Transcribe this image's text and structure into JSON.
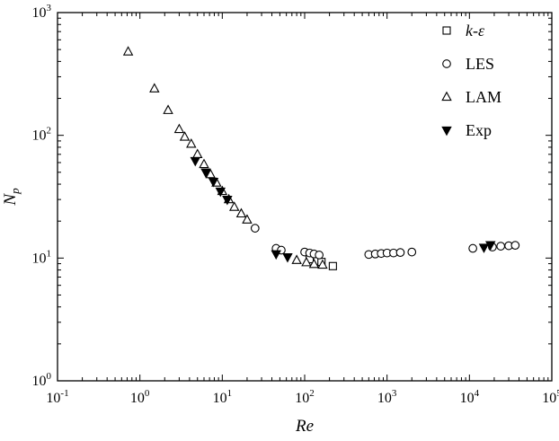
{
  "figure": {
    "background": "#ffffff",
    "frame_color": "#000000",
    "marker_fill_open": "#ffffff",
    "marker_fill_solid": "#000000"
  },
  "chart_data": {
    "type": "scatter",
    "title": "",
    "xlabel": "Re",
    "ylabel_main": "N",
    "ylabel_subscript": "p",
    "x_scale": "log",
    "y_scale": "log",
    "xlim": [
      0.1,
      100000
    ],
    "ylim": [
      1,
      1000
    ],
    "x_tick_exponents": [
      -1,
      0,
      1,
      2,
      3,
      4,
      5
    ],
    "y_tick_exponents": [
      0,
      1,
      2,
      3
    ],
    "grid": false,
    "legend_position": "top-right-inside",
    "series": [
      {
        "name": "k-ε",
        "marker": "square-open",
        "italic_label": true,
        "points": [
          [
            115,
            9.8
          ],
          [
            160,
            9.3
          ],
          [
            220,
            8.6
          ]
        ]
      },
      {
        "name": "LES",
        "marker": "circle-open",
        "italic_label": false,
        "points": [
          [
            25,
            17.5
          ],
          [
            45,
            12.0
          ],
          [
            52,
            11.6
          ],
          [
            100,
            11.2
          ],
          [
            115,
            11.0
          ],
          [
            130,
            10.8
          ],
          [
            150,
            10.6
          ],
          [
            600,
            10.7
          ],
          [
            720,
            10.8
          ],
          [
            850,
            10.9
          ],
          [
            1000,
            11.0
          ],
          [
            1200,
            11.0
          ],
          [
            1450,
            11.1
          ],
          [
            2000,
            11.2
          ],
          [
            11000,
            12.0
          ],
          [
            19000,
            12.3
          ],
          [
            24000,
            12.5
          ],
          [
            30000,
            12.6
          ],
          [
            36000,
            12.7
          ]
        ]
      },
      {
        "name": "LAM",
        "marker": "triangle-up-open",
        "italic_label": false,
        "points": [
          [
            0.72,
            480
          ],
          [
            1.5,
            240
          ],
          [
            2.2,
            160
          ],
          [
            3.0,
            112
          ],
          [
            3.5,
            97
          ],
          [
            4.2,
            85
          ],
          [
            5.0,
            70
          ],
          [
            6.0,
            58
          ],
          [
            7.2,
            48
          ],
          [
            8.5,
            41
          ],
          [
            10,
            35
          ],
          [
            12,
            30
          ],
          [
            14,
            26
          ],
          [
            17,
            23
          ],
          [
            20,
            20.5
          ],
          [
            80,
            9.6
          ],
          [
            105,
            9.2
          ],
          [
            130,
            8.9
          ],
          [
            165,
            8.8
          ]
        ]
      },
      {
        "name": "Exp",
        "marker": "triangle-down-filled",
        "italic_label": false,
        "points": [
          [
            4.7,
            62
          ],
          [
            6.3,
            50
          ],
          [
            7.8,
            42
          ],
          [
            9.5,
            35
          ],
          [
            11.5,
            30
          ],
          [
            45,
            10.8
          ],
          [
            62,
            10.2
          ],
          [
            15000,
            12.2
          ],
          [
            18000,
            12.8
          ]
        ]
      }
    ]
  }
}
